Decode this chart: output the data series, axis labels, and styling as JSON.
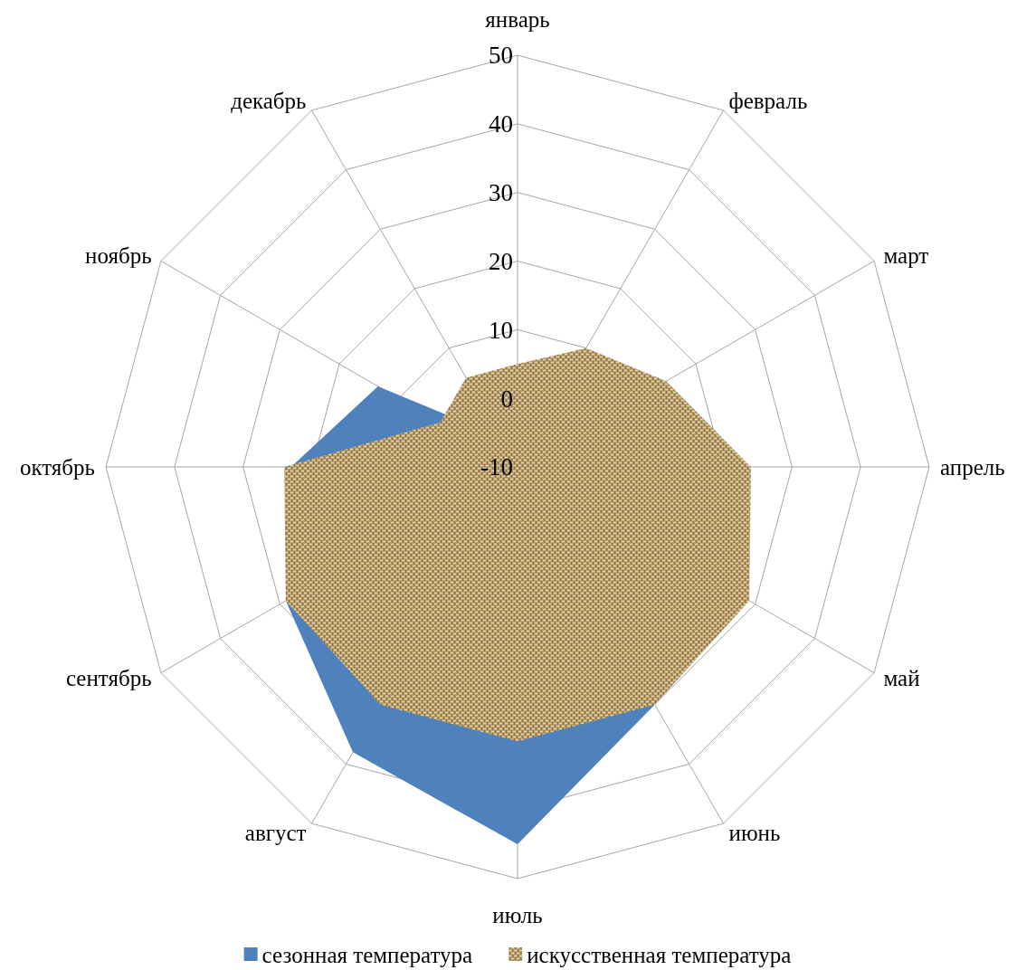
{
  "chart_data": {
    "type": "radar",
    "categories": [
      "январь",
      "февраль",
      "март",
      "апрель",
      "май",
      "июнь",
      "июль",
      "август",
      "сентябрь",
      "октябрь",
      "ноябрь",
      "декабрь"
    ],
    "series": [
      {
        "name": "сезонная температура",
        "color": "#4f81bd",
        "values": [
          null,
          null,
          null,
          null,
          null,
          30,
          45,
          38,
          29,
          23,
          13.5,
          -5
        ]
      },
      {
        "name": "искусственная температура",
        "color": "#b09a6c",
        "values": [
          5,
          10,
          15,
          24,
          29,
          30,
          30,
          30,
          29,
          24,
          3,
          5
        ]
      }
    ],
    "ylim": [
      -10,
      50
    ],
    "yticks": [
      -10,
      0,
      10,
      20,
      30,
      40,
      50
    ],
    "grid": true,
    "legend": "bottom"
  }
}
